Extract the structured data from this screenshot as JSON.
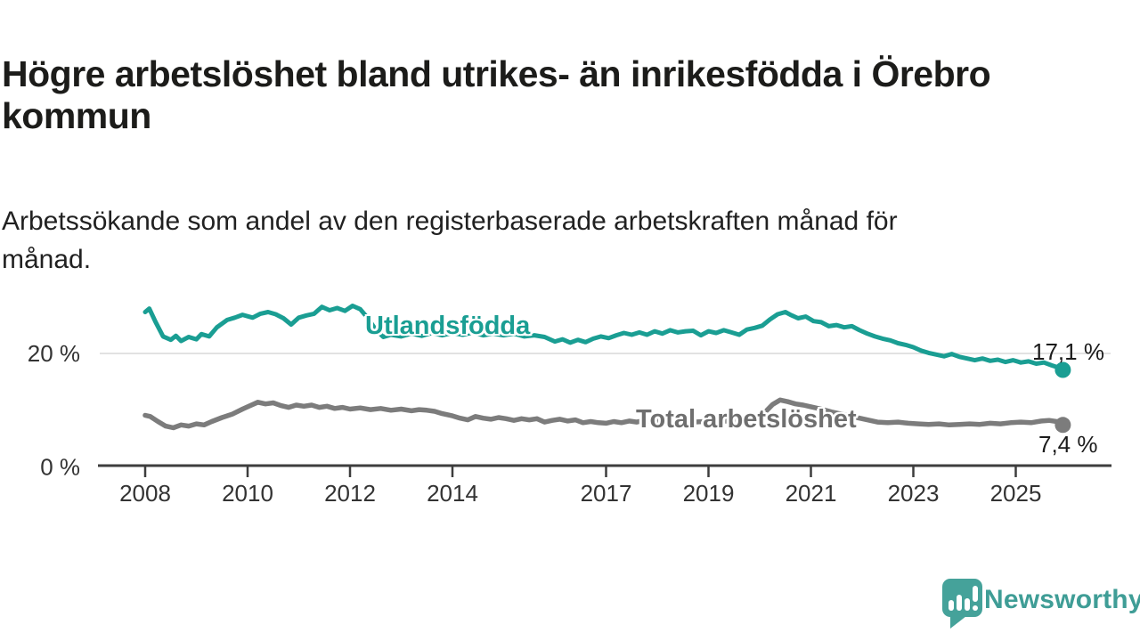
{
  "header": {
    "title": "Högre arbetslöshet bland utrikes- än inrikesfödda i Örebro kommun",
    "subtitle": "Arbetssökande som andel av den registerbaserade arbetskraften månad för månad."
  },
  "chart_data": {
    "type": "line",
    "title": "Högre arbetslöshet bland utrikes- än inrikesfödda i Örebro kommun",
    "subtitle": "Arbetssökande som andel av den registerbaserade arbetskraften månad för månad.",
    "unit": "%",
    "grid": "single horizontal gridline at 20 %",
    "legend_position": "inline labels on lines, end values at right",
    "x_range": [
      2008,
      2026
    ],
    "ylim": [
      0,
      30
    ],
    "x_ticks": [
      2008,
      2010,
      2012,
      2014,
      2017,
      2019,
      2021,
      2023,
      2025
    ],
    "y_ticks": [
      {
        "value": 20,
        "label": "20 %"
      },
      {
        "value": 0,
        "label": "0 %"
      }
    ],
    "series": [
      {
        "name": "Utlandsfödda",
        "color": "#1a9e93",
        "end_label": "17,1 %",
        "end_value": 17.1,
        "x": [
          2008.0,
          2008.08,
          2008.2,
          2008.35,
          2008.5,
          2008.6,
          2008.7,
          2008.85,
          2009.0,
          2009.1,
          2009.25,
          2009.4,
          2009.6,
          2009.75,
          2009.9,
          2010.1,
          2010.25,
          2010.4,
          2010.55,
          2010.7,
          2010.85,
          2011.0,
          2011.15,
          2011.3,
          2011.45,
          2011.6,
          2011.75,
          2011.9,
          2012.05,
          2012.2,
          2012.35,
          2012.5,
          2012.65,
          2012.8,
          2013.0,
          2013.2,
          2013.4,
          2013.6,
          2013.8,
          2014.0,
          2014.2,
          2014.4,
          2014.6,
          2014.8,
          2015.0,
          2015.2,
          2015.4,
          2015.6,
          2015.8,
          2016.0,
          2016.15,
          2016.3,
          2016.45,
          2016.6,
          2016.75,
          2016.9,
          2017.05,
          2017.2,
          2017.35,
          2017.5,
          2017.65,
          2017.8,
          2017.95,
          2018.1,
          2018.25,
          2018.4,
          2018.55,
          2018.7,
          2018.85,
          2019.0,
          2019.15,
          2019.3,
          2019.45,
          2019.6,
          2019.75,
          2019.9,
          2020.05,
          2020.2,
          2020.35,
          2020.5,
          2020.6,
          2020.75,
          2020.9,
          2021.05,
          2021.2,
          2021.35,
          2021.5,
          2021.65,
          2021.8,
          2021.95,
          2022.1,
          2022.25,
          2022.4,
          2022.55,
          2022.7,
          2022.85,
          2023.0,
          2023.15,
          2023.3,
          2023.45,
          2023.6,
          2023.75,
          2023.9,
          2024.05,
          2024.2,
          2024.35,
          2024.5,
          2024.65,
          2024.8,
          2024.95,
          2025.1,
          2025.25,
          2025.4,
          2025.55,
          2025.7,
          2025.8,
          2025.92
        ],
        "values": [
          27.3,
          27.9,
          25.6,
          23.0,
          22.4,
          23.1,
          22.2,
          22.9,
          22.5,
          23.4,
          23.0,
          24.6,
          25.9,
          26.3,
          26.8,
          26.3,
          27.0,
          27.3,
          26.9,
          26.2,
          25.1,
          26.3,
          26.7,
          27.0,
          28.2,
          27.6,
          28.0,
          27.5,
          28.4,
          27.8,
          26.2,
          24.2,
          22.9,
          23.3,
          23.0,
          23.5,
          23.1,
          23.6,
          23.2,
          23.6,
          23.3,
          23.7,
          23.2,
          23.5,
          23.2,
          23.5,
          23.0,
          23.2,
          22.9,
          22.1,
          22.5,
          21.9,
          22.4,
          22.0,
          22.6,
          23.0,
          22.7,
          23.2,
          23.6,
          23.3,
          23.7,
          23.3,
          23.9,
          23.5,
          24.1,
          23.7,
          23.9,
          24.0,
          23.2,
          23.9,
          23.6,
          24.1,
          23.7,
          23.3,
          24.2,
          24.5,
          24.9,
          26.0,
          26.9,
          27.3,
          26.8,
          26.2,
          26.5,
          25.7,
          25.5,
          24.8,
          25.0,
          24.6,
          24.8,
          24.1,
          23.5,
          23.0,
          22.6,
          22.3,
          21.8,
          21.5,
          21.1,
          20.5,
          20.1,
          19.8,
          19.5,
          19.9,
          19.4,
          19.1,
          18.8,
          19.1,
          18.7,
          18.9,
          18.5,
          18.8,
          18.4,
          18.6,
          18.2,
          18.4,
          17.9,
          17.6,
          17.1
        ]
      },
      {
        "name": "Total arbetslöshet",
        "color": "#7c7c7c",
        "label_color": "#6f6f6f",
        "end_label": "7,4 %",
        "end_value": 7.4,
        "x": [
          2008.0,
          2008.1,
          2008.25,
          2008.4,
          2008.55,
          2008.7,
          2008.85,
          2009.0,
          2009.15,
          2009.3,
          2009.5,
          2009.7,
          2009.9,
          2010.05,
          2010.2,
          2010.35,
          2010.5,
          2010.65,
          2010.8,
          2010.95,
          2011.1,
          2011.25,
          2011.4,
          2011.55,
          2011.7,
          2011.85,
          2012.0,
          2012.2,
          2012.4,
          2012.6,
          2012.8,
          2013.0,
          2013.2,
          2013.35,
          2013.5,
          2013.65,
          2013.8,
          2014.0,
          2014.15,
          2014.3,
          2014.45,
          2014.6,
          2014.75,
          2014.9,
          2015.05,
          2015.2,
          2015.35,
          2015.5,
          2015.65,
          2015.8,
          2015.95,
          2016.1,
          2016.25,
          2016.4,
          2016.55,
          2016.7,
          2016.85,
          2017.0,
          2017.15,
          2017.3,
          2017.45,
          2017.6,
          2017.75,
          2017.9,
          2018.1,
          2018.3,
          2018.5,
          2018.7,
          2018.9,
          2019.1,
          2019.3,
          2019.5,
          2019.7,
          2019.9,
          2020.1,
          2020.25,
          2020.4,
          2020.55,
          2020.7,
          2020.85,
          2021.0,
          2021.2,
          2021.4,
          2021.6,
          2021.8,
          2022.0,
          2022.15,
          2022.3,
          2022.5,
          2022.7,
          2022.9,
          2023.1,
          2023.3,
          2023.5,
          2023.7,
          2023.9,
          2024.1,
          2024.3,
          2024.5,
          2024.7,
          2024.9,
          2025.1,
          2025.3,
          2025.5,
          2025.65,
          2025.8,
          2025.92
        ],
        "values": [
          9.1,
          8.9,
          8.0,
          7.2,
          6.9,
          7.4,
          7.2,
          7.6,
          7.4,
          8.0,
          8.7,
          9.3,
          10.2,
          10.8,
          11.4,
          11.1,
          11.3,
          10.8,
          10.5,
          10.9,
          10.7,
          10.9,
          10.5,
          10.7,
          10.3,
          10.5,
          10.2,
          10.4,
          10.1,
          10.3,
          10.0,
          10.2,
          9.9,
          10.1,
          10.0,
          9.8,
          9.4,
          9.0,
          8.6,
          8.3,
          8.9,
          8.6,
          8.4,
          8.7,
          8.5,
          8.2,
          8.5,
          8.3,
          8.5,
          7.9,
          8.2,
          8.4,
          8.1,
          8.3,
          7.8,
          8.0,
          7.8,
          7.7,
          8.0,
          7.8,
          8.1,
          7.9,
          8.2,
          8.0,
          8.1,
          7.9,
          8.1,
          7.9,
          8.0,
          7.9,
          8.1,
          8.0,
          8.2,
          8.6,
          9.6,
          11.0,
          11.8,
          11.5,
          11.1,
          10.9,
          10.6,
          10.2,
          9.7,
          9.3,
          8.9,
          8.5,
          8.2,
          7.9,
          7.8,
          7.9,
          7.7,
          7.6,
          7.5,
          7.6,
          7.4,
          7.5,
          7.6,
          7.5,
          7.7,
          7.6,
          7.8,
          7.9,
          7.8,
          8.1,
          8.2,
          8.0,
          7.4
        ]
      }
    ]
  },
  "footer": {
    "brand": "Newsworthy"
  },
  "colors": {
    "background": "#ffffff",
    "accent_teal": "#1a9e93",
    "series_gray": "#7c7c7c",
    "grid": "#d9d9d9",
    "axis_line": "#3d3d3d",
    "axis_text": "#333333",
    "title_text": "#1c1c1a",
    "value_text": "#1b1b1b",
    "logo_teal": "#45a29a",
    "logo_text_teal": "#3f9d96"
  }
}
